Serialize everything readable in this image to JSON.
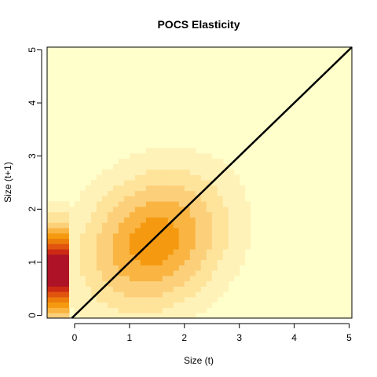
{
  "chart_data": {
    "type": "heatmap",
    "title": "POCS Elasticity",
    "xlabel": "Size (t)",
    "ylabel": "Size (t+1)",
    "xlim": [
      -0.5,
      5.05
    ],
    "ylim": [
      -0.05,
      5.05
    ],
    "x_ticks": [
      0,
      1,
      2,
      3,
      4,
      5
    ],
    "y_ticks": [
      0,
      1,
      2,
      3,
      4,
      5
    ],
    "grid": false,
    "legend": "none",
    "colors": {
      "background": "#ffffcc",
      "scale": [
        "#ffffcc",
        "#fff2b8",
        "#fee39b",
        "#fcd07a",
        "#f9b442",
        "#f59a10",
        "#ec7d0a",
        "#e0540f",
        "#cc2a14",
        "#ad1226",
        "#800033"
      ],
      "diagonal_line": "#000000"
    },
    "grid_resolution": {
      "x_start": -0.5,
      "x_step": 0.1,
      "y_start": -0.05,
      "y_step": 0.1,
      "nx": 56,
      "ny": 51
    },
    "surfaces": [
      {
        "name": "juvenile_band",
        "x_range": [
          -0.5,
          -0.05
        ],
        "y_center": 0.85,
        "y_sd": 0.6,
        "peak": 1.0
      },
      {
        "name": "growth_blob",
        "x_center": 1.45,
        "y_center": 1.4,
        "x_sd": 0.95,
        "y_sd": 0.95,
        "rho": 0.2,
        "peak": 0.56
      }
    ],
    "reference_line": {
      "x": [
        -0.05,
        5.05
      ],
      "y": [
        -0.05,
        5.05
      ]
    }
  }
}
